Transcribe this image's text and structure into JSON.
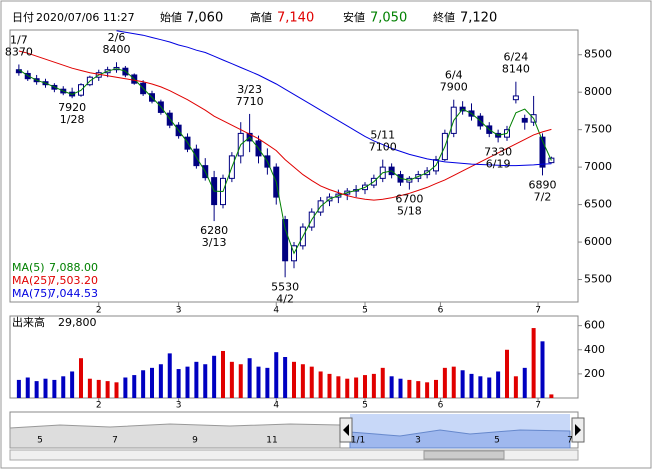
{
  "header": {
    "date_label": "日付",
    "date": "2020/07/06 11:27",
    "open_label": "始値",
    "open": "7,060",
    "high_label": "高値",
    "high": "7,140",
    "low_label": "安値",
    "low": "7,050",
    "close_label": "終値",
    "close": "7,120"
  },
  "chart_data": {
    "type": "candlestick",
    "x": [
      1,
      3,
      5,
      7,
      9,
      11,
      13,
      15,
      17,
      19,
      21,
      23,
      25,
      27,
      29,
      31,
      33,
      35,
      37,
      39,
      41,
      43,
      45,
      47,
      49,
      51,
      53,
      55,
      57,
      59,
      61,
      63,
      65,
      67,
      69,
      71,
      73,
      75,
      77,
      79,
      81,
      83,
      85,
      87,
      89,
      91,
      93,
      95,
      97,
      99,
      101,
      103,
      105,
      107,
      109,
      111,
      113,
      115,
      117,
      119,
      121
    ],
    "xlim": [
      -1,
      127
    ],
    "xticks": [
      {
        "value": 19,
        "label": "2"
      },
      {
        "value": 37,
        "label": "3"
      },
      {
        "value": 59,
        "label": "4"
      },
      {
        "value": 79,
        "label": "5"
      },
      {
        "value": 96,
        "label": "6"
      },
      {
        "value": 118,
        "label": "7"
      }
    ],
    "ylim": [
      5200,
      8830
    ],
    "yticks": [
      5500,
      6000,
      6500,
      7000,
      7500,
      8000,
      8500
    ],
    "up_color": "#ffffff",
    "down_color": "#000080",
    "candles": [
      [
        8300,
        8370,
        8220,
        8260
      ],
      [
        8250,
        8290,
        8150,
        8180
      ],
      [
        8180,
        8230,
        8100,
        8140
      ],
      [
        8140,
        8180,
        8060,
        8100
      ],
      [
        8090,
        8120,
        8000,
        8040
      ],
      [
        8040,
        8080,
        7960,
        7990
      ],
      [
        8000,
        8060,
        7920,
        7950
      ],
      [
        7960,
        8120,
        7940,
        8100
      ],
      [
        8100,
        8220,
        8080,
        8200
      ],
      [
        8200,
        8300,
        8150,
        8260
      ],
      [
        8260,
        8340,
        8200,
        8300
      ],
      [
        8300,
        8400,
        8260,
        8330
      ],
      [
        8320,
        8350,
        8200,
        8230
      ],
      [
        8230,
        8250,
        8100,
        8120
      ],
      [
        8120,
        8160,
        7950,
        7980
      ],
      [
        7980,
        8020,
        7850,
        7880
      ],
      [
        7870,
        7900,
        7700,
        7730
      ],
      [
        7720,
        7760,
        7520,
        7560
      ],
      [
        7560,
        7600,
        7380,
        7420
      ],
      [
        7400,
        7450,
        7200,
        7240
      ],
      [
        7240,
        7300,
        6980,
        7020
      ],
      [
        7020,
        7120,
        6820,
        6860
      ],
      [
        6860,
        6950,
        6280,
        6500
      ],
      [
        6500,
        6900,
        6450,
        6850
      ],
      [
        6850,
        7200,
        6800,
        7150
      ],
      [
        7150,
        7600,
        7050,
        7450
      ],
      [
        7450,
        7710,
        7200,
        7350
      ],
      [
        7350,
        7420,
        7050,
        7150
      ],
      [
        7150,
        7250,
        6900,
        7000
      ],
      [
        7000,
        7050,
        6500,
        6600
      ],
      [
        6300,
        6350,
        5530,
        5750
      ],
      [
        5750,
        6000,
        5650,
        5950
      ],
      [
        5950,
        6250,
        5900,
        6200
      ],
      [
        6200,
        6450,
        6150,
        6400
      ],
      [
        6400,
        6600,
        6350,
        6550
      ],
      [
        6550,
        6650,
        6480,
        6600
      ],
      [
        6600,
        6700,
        6520,
        6640
      ],
      [
        6640,
        6720,
        6560,
        6680
      ],
      [
        6680,
        6760,
        6600,
        6700
      ],
      [
        6700,
        6800,
        6640,
        6760
      ],
      [
        6760,
        6900,
        6720,
        6850
      ],
      [
        6850,
        7100,
        6800,
        7000
      ],
      [
        7000,
        7050,
        6850,
        6900
      ],
      [
        6900,
        6950,
        6750,
        6800
      ],
      [
        6800,
        6880,
        6700,
        6850
      ],
      [
        6850,
        6950,
        6800,
        6900
      ],
      [
        6900,
        7000,
        6850,
        6950
      ],
      [
        6950,
        7150,
        6900,
        7100
      ],
      [
        7100,
        7500,
        7080,
        7450
      ],
      [
        7450,
        7900,
        7400,
        7800
      ],
      [
        7800,
        7880,
        7700,
        7750
      ],
      [
        7750,
        7850,
        7620,
        7680
      ],
      [
        7680,
        7720,
        7500,
        7550
      ],
      [
        7550,
        7600,
        7400,
        7450
      ],
      [
        7450,
        7500,
        7330,
        7400
      ],
      [
        7400,
        7550,
        7350,
        7500
      ],
      [
        7900,
        8140,
        7850,
        7950
      ],
      [
        7650,
        7700,
        7500,
        7600
      ],
      [
        7600,
        7950,
        7550,
        7700
      ],
      [
        7400,
        7450,
        6890,
        7000
      ],
      [
        7060,
        7140,
        7050,
        7120
      ]
    ],
    "series": [
      {
        "name": "MA(5)",
        "color": "#008000",
        "value_label": "7,088.00",
        "values": [
          8300,
          8220,
          8160,
          8120,
          8070,
          8015,
          7970,
          8025,
          8150,
          8230,
          8280,
          8315,
          8280,
          8175,
          8050,
          7930,
          7805,
          7645,
          7490,
          7330,
          7130,
          6940,
          6680,
          6675,
          7000,
          7300,
          7400,
          7250,
          7075,
          6800,
          6175,
          5850,
          6075,
          6300,
          6475,
          6575,
          6620,
          6660,
          6690,
          6730,
          6805,
          6925,
          6950,
          6850,
          6825,
          6875,
          6925,
          7025,
          7275,
          7625,
          7775,
          7715,
          7615,
          7500,
          7425,
          7450,
          7725,
          7775,
          7650,
          7350,
          7088
        ]
      },
      {
        "name": "MA(25)",
        "color": "#e00000",
        "value_label": "7,503.20",
        "values": [
          8550,
          8520,
          8480,
          8440,
          8400,
          8360,
          8320,
          8290,
          8260,
          8240,
          8220,
          8200,
          8180,
          8160,
          8140,
          8110,
          8070,
          8020,
          7960,
          7900,
          7830,
          7760,
          7680,
          7620,
          7560,
          7500,
          7440,
          7380,
          7300,
          7220,
          7100,
          7000,
          6900,
          6820,
          6750,
          6700,
          6660,
          6620,
          6590,
          6570,
          6560,
          6570,
          6590,
          6620,
          6650,
          6690,
          6730,
          6780,
          6830,
          6890,
          6950,
          7010,
          7070,
          7130,
          7190,
          7250,
          7310,
          7370,
          7430,
          7470,
          7503.2
        ]
      },
      {
        "name": "MA(75)",
        "color": "#0000e0",
        "value_label": "7,044.53",
        "values": [
          null,
          null,
          null,
          null,
          null,
          null,
          null,
          null,
          null,
          null,
          null,
          8820,
          8800,
          8780,
          8760,
          8730,
          8700,
          8670,
          8630,
          8600,
          8560,
          8530,
          8480,
          8430,
          8380,
          8330,
          8280,
          8230,
          8170,
          8110,
          8040,
          7970,
          7900,
          7830,
          7760,
          7690,
          7620,
          7550,
          7480,
          7410,
          7350,
          7300,
          7250,
          7210,
          7170,
          7140,
          7110,
          7090,
          7070,
          7060,
          7050,
          7040,
          7035,
          7030,
          7025,
          7020,
          7020,
          7025,
          7030,
          7040,
          7044.53
        ]
      }
    ],
    "annotations": [
      {
        "date": "1/7",
        "value": 8370,
        "x": 1
      },
      {
        "date": "2/6",
        "value": 8400,
        "x": 23
      },
      {
        "date": "1/28",
        "value": 7920,
        "x": 13
      },
      {
        "date": "3/23",
        "value": 7710,
        "x": 53
      },
      {
        "date": "3/13",
        "value": 6280,
        "x": 45
      },
      {
        "date": "4/2",
        "value": 5530,
        "x": 61
      },
      {
        "date": "5/11",
        "value": 7100,
        "x": 83
      },
      {
        "date": "5/18",
        "value": 6700,
        "x": 89
      },
      {
        "date": "6/4",
        "value": 7900,
        "x": 99
      },
      {
        "date": "6/24",
        "value": 8140,
        "x": 113
      },
      {
        "date": "6/19",
        "value": 7330,
        "x": 109
      },
      {
        "date": "7/2",
        "value": 6890,
        "x": 119
      }
    ],
    "volume": {
      "label": "出来高",
      "value_label": "29,800",
      "ylim": [
        0,
        680
      ],
      "yticks": [
        200,
        400,
        600
      ],
      "up_color": "#e00000",
      "down_color": "#0000c0",
      "values": [
        150,
        170,
        140,
        160,
        150,
        180,
        220,
        330,
        160,
        150,
        140,
        130,
        170,
        190,
        230,
        250,
        280,
        370,
        240,
        260,
        300,
        280,
        350,
        390,
        300,
        280,
        330,
        260,
        250,
        380,
        340,
        300,
        280,
        260,
        220,
        200,
        180,
        160,
        170,
        190,
        200,
        250,
        180,
        160,
        150,
        140,
        130,
        150,
        250,
        260,
        230,
        200,
        180,
        170,
        220,
        400,
        180,
        250,
        580,
        470,
        29.8
      ]
    }
  },
  "navigator": {
    "labels": [
      "5",
      "7",
      "9",
      "11",
      "1/1",
      "3",
      "5",
      "7"
    ]
  }
}
